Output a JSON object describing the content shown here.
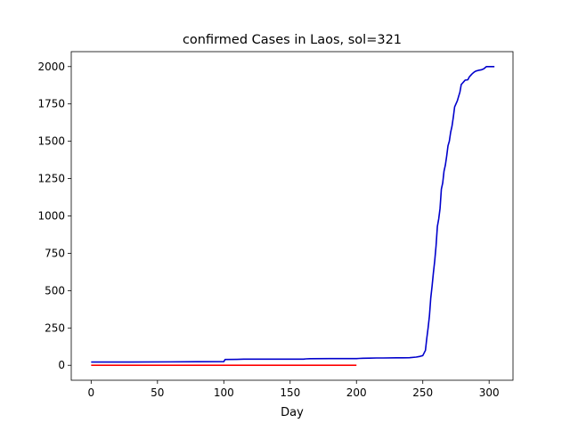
{
  "chart_data": {
    "type": "line",
    "title": "confirmed Cases in Laos, sol=321",
    "xlabel": "Day",
    "ylabel": "",
    "xlim": [
      -15,
      318
    ],
    "ylim": [
      -100,
      2100
    ],
    "x_ticks": [
      0,
      50,
      100,
      150,
      200,
      250,
      300
    ],
    "y_ticks": [
      0,
      250,
      500,
      750,
      1000,
      1250,
      1500,
      1750,
      2000
    ],
    "grid": false,
    "series": [
      {
        "color": "#0000cc",
        "x": [
          0,
          30,
          60,
          80,
          100,
          101,
          102,
          110,
          115,
          120,
          140,
          160,
          162,
          165,
          180,
          200,
          202,
          205,
          210,
          215,
          220,
          230,
          235,
          240,
          245,
          248,
          250,
          252,
          253,
          254,
          255,
          256,
          257,
          258,
          259,
          260,
          261,
          262,
          263,
          264,
          265,
          266,
          267,
          268,
          269,
          270,
          271,
          272,
          273,
          274,
          275,
          276,
          277,
          278,
          279,
          280,
          281,
          282,
          283,
          284,
          285,
          286,
          287,
          288,
          289,
          290,
          292,
          294,
          296,
          298,
          300,
          302,
          304
        ],
        "values": [
          22,
          22,
          23,
          24,
          25,
          39,
          39,
          40,
          41,
          41,
          41,
          41,
          43,
          44,
          45,
          45,
          46,
          47,
          48,
          49,
          49,
          50,
          50,
          51,
          55,
          60,
          65,
          100,
          180,
          250,
          330,
          450,
          530,
          620,
          700,
          800,
          930,
          980,
          1050,
          1180,
          1220,
          1300,
          1340,
          1400,
          1470,
          1500,
          1560,
          1600,
          1660,
          1730,
          1750,
          1770,
          1800,
          1830,
          1880,
          1890,
          1900,
          1910,
          1910,
          1912,
          1930,
          1940,
          1950,
          1958,
          1965,
          1970,
          1975,
          1978,
          1985,
          2000,
          2000,
          2000,
          2000
        ]
      },
      {
        "color": "#ff0000",
        "x": [
          0,
          200
        ],
        "values": [
          0,
          0
        ]
      }
    ]
  }
}
